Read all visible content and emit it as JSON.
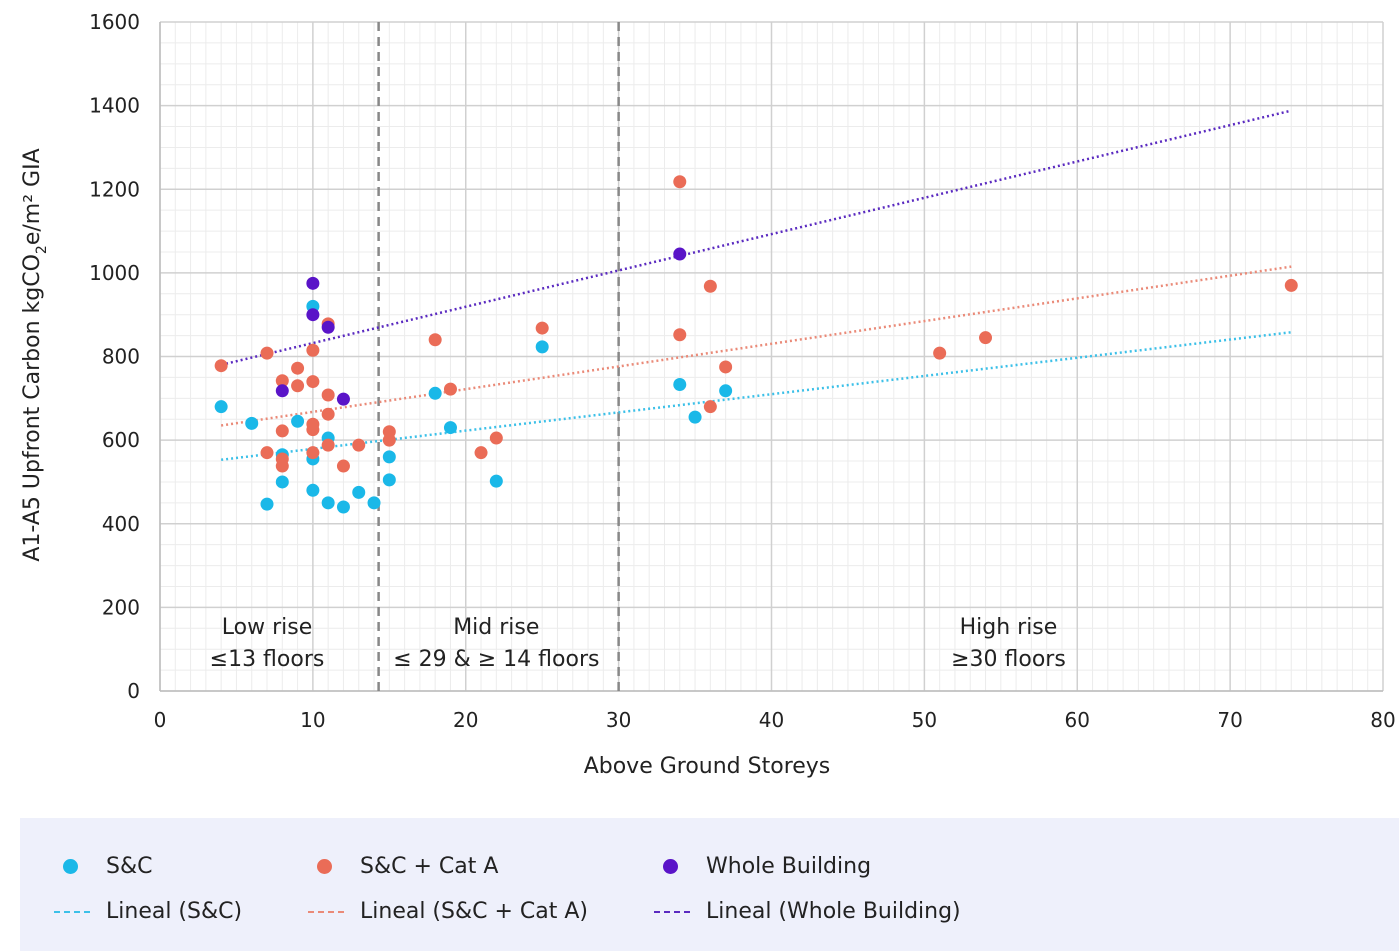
{
  "chart_data": {
    "type": "scatter",
    "title": "",
    "xlabel": "Above Ground Storeys",
    "ylabel_main": "A1-A5 Upfront Carbon kgCO",
    "ylabel_sub": "2",
    "ylabel_tail": "e/m² GIA",
    "xlim": [
      0,
      80
    ],
    "ylim": [
      0,
      1600
    ],
    "xticks": [
      "0",
      "10",
      "20",
      "30",
      "40",
      "50",
      "60",
      "70",
      "80"
    ],
    "yticks": [
      "0",
      "200",
      "400",
      "600",
      "800",
      "1000",
      "1200",
      "1400",
      "1600"
    ],
    "grid": true,
    "dividers": [
      14.3,
      30.0
    ],
    "zones": [
      {
        "line1": "Low rise",
        "line2": "≤13 floors",
        "x": 7
      },
      {
        "line1": "Mid rise",
        "line2": "≤ 29 & ≥ 14 floors",
        "x": 22
      },
      {
        "line1": "High rise",
        "line2": "≥30 floors",
        "x": 55.5
      }
    ],
    "series": [
      {
        "name": "S&C",
        "color": "#1ab8e8",
        "points": [
          [
            4,
            680
          ],
          [
            6,
            640
          ],
          [
            7,
            447
          ],
          [
            8,
            565
          ],
          [
            8,
            500
          ],
          [
            9,
            645
          ],
          [
            10,
            920
          ],
          [
            10,
            555
          ],
          [
            10,
            480
          ],
          [
            11,
            605
          ],
          [
            11,
            450
          ],
          [
            12,
            440
          ],
          [
            13,
            475
          ],
          [
            14,
            450
          ],
          [
            15,
            560
          ],
          [
            15,
            505
          ],
          [
            18,
            712
          ],
          [
            19,
            630
          ],
          [
            22,
            502
          ],
          [
            25,
            823
          ],
          [
            34,
            733
          ],
          [
            35,
            655
          ],
          [
            37,
            718
          ]
        ]
      },
      {
        "name": "S&C + Cat A",
        "color": "#ea6c57",
        "points": [
          [
            4,
            778
          ],
          [
            7,
            808
          ],
          [
            7,
            570
          ],
          [
            8,
            742
          ],
          [
            8,
            622
          ],
          [
            8,
            555
          ],
          [
            8,
            538
          ],
          [
            9,
            772
          ],
          [
            9,
            730
          ],
          [
            10,
            815
          ],
          [
            10,
            740
          ],
          [
            10,
            638
          ],
          [
            10,
            625
          ],
          [
            10,
            570
          ],
          [
            11,
            878
          ],
          [
            11,
            708
          ],
          [
            11,
            662
          ],
          [
            11,
            588
          ],
          [
            12,
            538
          ],
          [
            13,
            588
          ],
          [
            15,
            620
          ],
          [
            15,
            600
          ],
          [
            18,
            840
          ],
          [
            19,
            722
          ],
          [
            21,
            570
          ],
          [
            22,
            605
          ],
          [
            25,
            868
          ],
          [
            34,
            1218
          ],
          [
            34,
            852
          ],
          [
            36,
            968
          ],
          [
            36,
            680
          ],
          [
            37,
            775
          ],
          [
            51,
            808
          ],
          [
            54,
            845
          ],
          [
            74,
            970
          ]
        ]
      },
      {
        "name": "Whole Building",
        "color": "#5a14c8",
        "points": [
          [
            8,
            718
          ],
          [
            10,
            975
          ],
          [
            10,
            900
          ],
          [
            11,
            870
          ],
          [
            12,
            698
          ],
          [
            34,
            1045
          ]
        ]
      }
    ],
    "trendlines": [
      {
        "name": "Lineal (S&C)",
        "color": "#3cc0e8",
        "from": [
          4,
          553
        ],
        "to": [
          74,
          858
        ]
      },
      {
        "name": "Lineal (S&C + Cat A)",
        "color": "#ea8a78",
        "from": [
          4,
          635
        ],
        "to": [
          74,
          1015
        ]
      },
      {
        "name": "Lineal (Whole Building)",
        "color": "#5a2ac0",
        "from": [
          4,
          780
        ],
        "to": [
          74,
          1388
        ]
      }
    ]
  }
}
